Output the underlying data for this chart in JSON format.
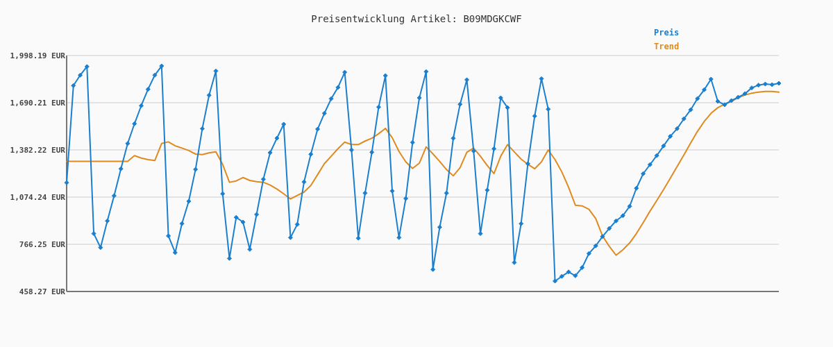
{
  "chart_data": {
    "type": "line",
    "title": "Preisentwicklung Artikel: B09MDGKCWF",
    "categories": [
      null,
      null,
      null,
      null,
      null,
      null,
      null,
      null,
      null,
      null,
      null,
      null,
      null,
      null,
      null,
      null,
      null,
      null,
      null,
      null,
      null,
      null,
      null,
      null,
      null,
      null,
      null,
      null,
      null,
      null,
      null,
      null,
      null,
      null,
      null,
      null,
      null,
      null,
      null,
      null,
      null,
      null,
      null,
      null,
      null,
      null,
      null,
      null,
      null,
      null,
      null,
      null,
      null,
      null,
      null,
      null,
      null,
      null,
      null,
      null,
      null,
      null,
      null,
      null,
      null,
      null,
      null,
      null,
      null,
      null,
      null,
      null,
      null,
      null,
      null,
      null,
      null,
      null,
      null,
      null,
      null,
      null,
      null,
      null,
      null,
      null,
      null,
      null,
      null,
      null,
      null,
      null,
      null,
      null,
      null,
      null,
      null,
      null,
      null,
      null,
      null,
      null,
      null,
      null,
      null,
      null
    ],
    "series": [
      {
        "name": "Preis",
        "color": "#1a7fcf",
        "values": [
          1168,
          1802,
          1870,
          1926,
          836,
          745,
          919,
          1083,
          1259,
          1424,
          1553,
          1671,
          1778,
          1870,
          1930,
          821,
          712,
          901,
          1047,
          1255,
          1521,
          1739,
          1897,
          1096,
          674,
          942,
          911,
          733,
          961,
          1191,
          1364,
          1459,
          1550,
          810,
          896,
          1173,
          1354,
          1518,
          1621,
          1716,
          1790,
          1889,
          1382,
          806,
          1100,
          1367,
          1662,
          1867,
          1114,
          810,
          1065,
          1431,
          1722,
          1893,
          602,
          878,
          1100,
          1458,
          1680,
          1840,
          1375,
          836,
          1120,
          1390,
          1722,
          1658,
          647,
          901,
          1292,
          1603,
          1847,
          1648,
          526,
          557,
          586,
          561,
          614,
          706,
          756,
          817,
          870,
          919,
          953,
          1014,
          1132,
          1227,
          1286,
          1345,
          1408,
          1471,
          1521,
          1585,
          1644,
          1717,
          1775,
          1844,
          1699,
          1677,
          1704,
          1726,
          1749,
          1787,
          1805,
          1812,
          1808,
          1817
        ]
      },
      {
        "name": "Trend",
        "color": "#e08a1e",
        "marker": "none",
        "values": [
          1307,
          1307,
          1307,
          1307,
          1307,
          1307,
          1307,
          1307,
          1307,
          1307,
          1345,
          1329,
          1319,
          1313,
          1424,
          1435,
          1409,
          1394,
          1378,
          1355,
          1352,
          1363,
          1370,
          1288,
          1171,
          1180,
          1202,
          1183,
          1175,
          1171,
          1153,
          1127,
          1096,
          1062,
          1085,
          1107,
          1150,
          1221,
          1293,
          1341,
          1390,
          1433,
          1417,
          1417,
          1440,
          1459,
          1488,
          1523,
          1462,
          1372,
          1304,
          1261,
          1296,
          1402,
          1356,
          1307,
          1254,
          1213,
          1266,
          1367,
          1394,
          1341,
          1281,
          1228,
          1341,
          1417,
          1369,
          1322,
          1288,
          1259,
          1304,
          1382,
          1319,
          1239,
          1138,
          1021,
          1017,
          994,
          934,
          821,
          753,
          695,
          730,
          775,
          836,
          908,
          982,
          1052,
          1123,
          1198,
          1274,
          1349,
          1427,
          1503,
          1568,
          1621,
          1658,
          1681,
          1699,
          1723,
          1741,
          1752,
          1759,
          1764,
          1764,
          1759
        ]
      }
    ],
    "ylim": [
      458.27,
      1998.19
    ],
    "yticks": [
      {
        "value": 458.27,
        "label": "458.27 EUR"
      },
      {
        "value": 766.25,
        "label": "766.25 EUR"
      },
      {
        "value": 1074.24,
        "label": "1,074.24 EUR"
      },
      {
        "value": 1382.22,
        "label": "1,382.22 EUR"
      },
      {
        "value": 1690.21,
        "label": "1,690.21 EUR"
      },
      {
        "value": 1998.19,
        "label": "1,998.19 EUR"
      }
    ],
    "grid": "y",
    "legend": "top right",
    "tick_labels": "y",
    "marker": "diamond",
    "line_style": "solid"
  }
}
